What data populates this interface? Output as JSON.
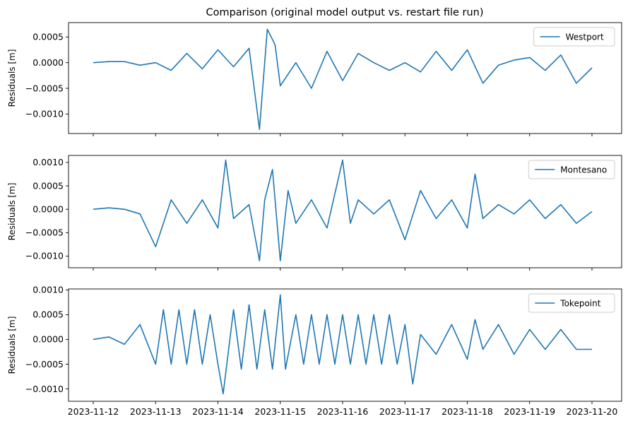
{
  "chart_data": [
    {
      "type": "line",
      "title": "Comparison (original model output vs. restart file run)",
      "ylabel": "Residuals [m]",
      "xlabel": "",
      "legend": "top-right",
      "grid": false,
      "ylim": [
        -0.00138,
        0.00078
      ],
      "yticks": [
        0.0005,
        0.0,
        -0.0005,
        -0.001
      ],
      "ytick_labels": [
        "0.0005",
        "0.0000",
        "−0.0005",
        "−0.0010"
      ],
      "series": [
        {
          "name": "Westport",
          "color": "#1f77b4",
          "x": [
            "2023-11-12 00:00",
            "2023-11-12 06:00",
            "2023-11-12 12:00",
            "2023-11-12 18:00",
            "2023-11-13 00:00",
            "2023-11-13 06:00",
            "2023-11-13 12:00",
            "2023-11-13 18:00",
            "2023-11-14 00:00",
            "2023-11-14 06:00",
            "2023-11-14 12:00",
            "2023-11-14 16:00",
            "2023-11-14 19:00",
            "2023-11-14 22:00",
            "2023-11-15 00:00",
            "2023-11-15 06:00",
            "2023-11-15 12:00",
            "2023-11-15 18:00",
            "2023-11-16 00:00",
            "2023-11-16 06:00",
            "2023-11-16 12:00",
            "2023-11-16 18:00",
            "2023-11-17 00:00",
            "2023-11-17 06:00",
            "2023-11-17 12:00",
            "2023-11-17 18:00",
            "2023-11-18 00:00",
            "2023-11-18 06:00",
            "2023-11-18 12:00",
            "2023-11-18 18:00",
            "2023-11-19 00:00",
            "2023-11-19 06:00",
            "2023-11-19 12:00",
            "2023-11-19 18:00",
            "2023-11-20 00:00"
          ],
          "values": [
            0.0,
            2e-05,
            2e-05,
            -5e-05,
            0.0,
            -0.00015,
            0.00018,
            -0.00012,
            0.00025,
            -8e-05,
            0.00028,
            -0.0013,
            0.00065,
            0.00035,
            -0.00045,
            0.0,
            -0.0005,
            0.00022,
            -0.00035,
            0.00018,
            0.0,
            -0.00015,
            0.0,
            -0.00018,
            0.00022,
            -0.00015,
            0.00025,
            -0.0004,
            -5e-05,
            5e-05,
            0.0001,
            -0.00015,
            0.00015,
            -0.0004,
            -0.0001
          ]
        }
      ]
    },
    {
      "type": "line",
      "title": "",
      "ylabel": "Residuals [m]",
      "xlabel": "",
      "legend": "top-right",
      "grid": false,
      "ylim": [
        -0.00125,
        0.00115
      ],
      "yticks": [
        0.001,
        0.0005,
        0.0,
        -0.0005,
        -0.001
      ],
      "ytick_labels": [
        "0.0010",
        "0.0005",
        "0.0000",
        "−0.0005",
        "−0.0010"
      ],
      "series": [
        {
          "name": "Montesano",
          "color": "#1f77b4",
          "x": [
            "2023-11-12 00:00",
            "2023-11-12 06:00",
            "2023-11-12 12:00",
            "2023-11-12 18:00",
            "2023-11-13 00:00",
            "2023-11-13 06:00",
            "2023-11-13 12:00",
            "2023-11-13 18:00",
            "2023-11-14 00:00",
            "2023-11-14 03:00",
            "2023-11-14 06:00",
            "2023-11-14 12:00",
            "2023-11-14 16:00",
            "2023-11-14 18:00",
            "2023-11-14 21:00",
            "2023-11-15 00:00",
            "2023-11-15 03:00",
            "2023-11-15 06:00",
            "2023-11-15 12:00",
            "2023-11-15 18:00",
            "2023-11-16 00:00",
            "2023-11-16 03:00",
            "2023-11-16 06:00",
            "2023-11-16 12:00",
            "2023-11-16 18:00",
            "2023-11-17 00:00",
            "2023-11-17 06:00",
            "2023-11-17 12:00",
            "2023-11-17 18:00",
            "2023-11-18 00:00",
            "2023-11-18 03:00",
            "2023-11-18 06:00",
            "2023-11-18 12:00",
            "2023-11-18 18:00",
            "2023-11-19 00:00",
            "2023-11-19 06:00",
            "2023-11-19 12:00",
            "2023-11-19 18:00",
            "2023-11-20 00:00"
          ],
          "values": [
            0.0,
            3e-05,
            0.0,
            -0.0001,
            -0.0008,
            0.0002,
            -0.0003,
            0.0002,
            -0.0004,
            0.00105,
            -0.0002,
            0.0001,
            -0.0011,
            0.0002,
            0.00085,
            -0.0011,
            0.0004,
            -0.0003,
            0.0002,
            -0.0004,
            0.00105,
            -0.0003,
            0.0002,
            -0.0001,
            0.0002,
            -0.00065,
            0.0004,
            -0.0002,
            0.0002,
            -0.0004,
            0.00075,
            -0.0002,
            0.0001,
            -0.0001,
            0.0002,
            -0.0002,
            0.0001,
            -0.0003,
            -5e-05
          ]
        }
      ]
    },
    {
      "type": "line",
      "title": "",
      "ylabel": "Residuals [m]",
      "xlabel": "",
      "legend": "top-right",
      "grid": false,
      "ylim": [
        -0.00125,
        0.00102
      ],
      "yticks": [
        0.001,
        0.0005,
        0.0,
        -0.0005,
        -0.001
      ],
      "ytick_labels": [
        "0.0010",
        "0.0005",
        "0.0000",
        "−0.0005",
        "−0.0010"
      ],
      "xtick_labels": [
        "2023-11-12",
        "2023-11-13",
        "2023-11-14",
        "2023-11-15",
        "2023-11-16",
        "2023-11-17",
        "2023-11-18",
        "2023-11-19",
        "2023-11-20"
      ],
      "series": [
        {
          "name": "Tokepoint",
          "color": "#1f77b4",
          "x": [
            "2023-11-12 00:00",
            "2023-11-12 06:00",
            "2023-11-12 12:00",
            "2023-11-12 18:00",
            "2023-11-13 00:00",
            "2023-11-13 03:00",
            "2023-11-13 06:00",
            "2023-11-13 09:00",
            "2023-11-13 12:00",
            "2023-11-13 15:00",
            "2023-11-13 18:00",
            "2023-11-13 21:00",
            "2023-11-14 00:00",
            "2023-11-14 02:00",
            "2023-11-14 06:00",
            "2023-11-14 09:00",
            "2023-11-14 12:00",
            "2023-11-14 15:00",
            "2023-11-14 18:00",
            "2023-11-14 21:00",
            "2023-11-15 00:00",
            "2023-11-15 02:00",
            "2023-11-15 06:00",
            "2023-11-15 09:00",
            "2023-11-15 12:00",
            "2023-11-15 15:00",
            "2023-11-15 18:00",
            "2023-11-15 21:00",
            "2023-11-16 00:00",
            "2023-11-16 03:00",
            "2023-11-16 06:00",
            "2023-11-16 09:00",
            "2023-11-16 12:00",
            "2023-11-16 15:00",
            "2023-11-16 18:00",
            "2023-11-16 21:00",
            "2023-11-17 00:00",
            "2023-11-17 03:00",
            "2023-11-17 06:00",
            "2023-11-17 12:00",
            "2023-11-17 18:00",
            "2023-11-18 00:00",
            "2023-11-18 03:00",
            "2023-11-18 06:00",
            "2023-11-18 12:00",
            "2023-11-18 18:00",
            "2023-11-19 00:00",
            "2023-11-19 06:00",
            "2023-11-19 12:00",
            "2023-11-19 18:00",
            "2023-11-20 00:00"
          ],
          "values": [
            0.0,
            5e-05,
            -0.0001,
            0.0003,
            -0.0005,
            0.0006,
            -0.0005,
            0.0006,
            -0.0005,
            0.0006,
            -0.0005,
            0.0005,
            -0.0005,
            -0.0011,
            0.0006,
            -0.0006,
            0.0007,
            -0.0006,
            0.0006,
            -0.0006,
            0.0009,
            -0.0006,
            0.0005,
            -0.0005,
            0.0005,
            -0.0005,
            0.0005,
            -0.0005,
            0.0005,
            -0.0005,
            0.0005,
            -0.0005,
            0.0005,
            -0.0005,
            0.0005,
            -0.0005,
            0.0003,
            -0.0009,
            0.0001,
            -0.0003,
            0.0003,
            -0.0004,
            0.0004,
            -0.0002,
            0.0003,
            -0.0003,
            0.0002,
            -0.0002,
            0.0002,
            -0.0002,
            -0.0002
          ]
        }
      ]
    }
  ]
}
